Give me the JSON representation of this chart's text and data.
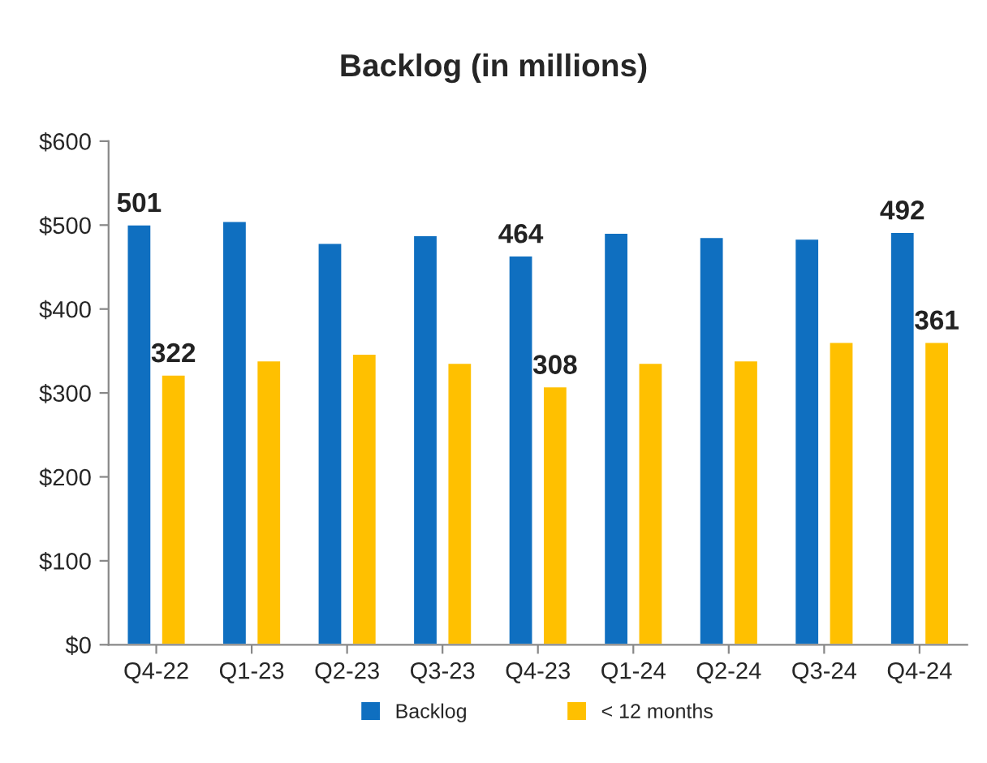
{
  "chart_data": {
    "type": "bar",
    "title": "Backlog (in millions)",
    "categories": [
      "Q4-22",
      "Q1-23",
      "Q2-23",
      "Q3-23",
      "Q4-23",
      "Q1-24",
      "Q2-24",
      "Q3-24",
      "Q4-24"
    ],
    "series": [
      {
        "name": "Backlog",
        "color": "#0f6fc0",
        "values": [
          501,
          505,
          479,
          488,
          464,
          491,
          486,
          484,
          492
        ],
        "value_labels": [
          "501",
          null,
          null,
          null,
          "464",
          null,
          null,
          null,
          "492"
        ]
      },
      {
        "name": "< 12 months",
        "color": "#ffc000",
        "values": [
          322,
          339,
          347,
          336,
          308,
          336,
          339,
          361,
          361
        ],
        "value_labels": [
          "322",
          null,
          null,
          null,
          "308",
          null,
          null,
          null,
          "361"
        ]
      }
    ],
    "ylim": [
      0,
      600
    ],
    "yticks": [
      {
        "value": 0,
        "label": "$0"
      },
      {
        "value": 100,
        "label": "$100"
      },
      {
        "value": 200,
        "label": "$200"
      },
      {
        "value": 300,
        "label": "$300"
      },
      {
        "value": 400,
        "label": "$400"
      },
      {
        "value": 500,
        "label": "$500"
      },
      {
        "value": 600,
        "label": "$600"
      }
    ],
    "grid": false,
    "legend": "bottom"
  }
}
